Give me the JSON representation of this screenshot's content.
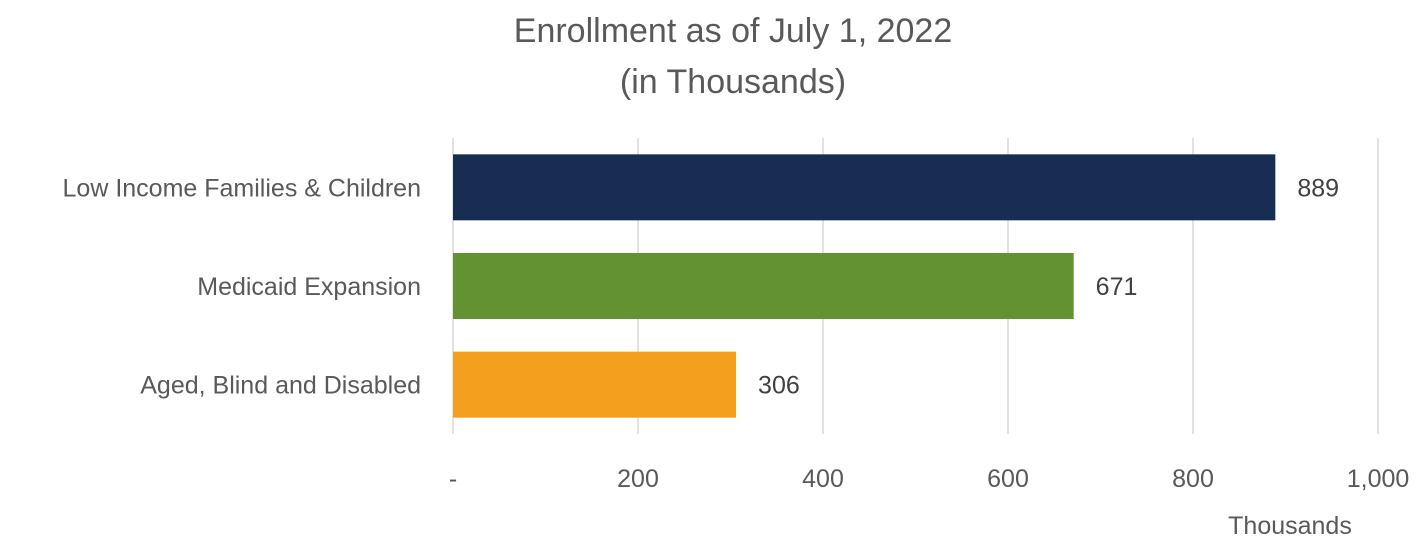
{
  "chart_data": {
    "type": "bar",
    "orientation": "horizontal",
    "title_line1": "Enrollment as of July 1, 2022",
    "title_line2": "(in Thousands)",
    "xlabel": "Thousands",
    "ylabel": "",
    "categories": [
      "Low Income Families & Children",
      "Medicaid Expansion",
      "Aged, Blind and Disabled"
    ],
    "values": [
      889,
      671,
      306
    ],
    "value_labels": [
      "889",
      "671",
      "306"
    ],
    "colors": [
      "#172e52",
      "#629330",
      "#f59f1f"
    ],
    "xlim": [
      0,
      1000
    ],
    "x_ticks": [
      0,
      200,
      400,
      600,
      800,
      1000
    ],
    "x_tick_labels": [
      "-",
      "200",
      "400",
      "600",
      "800",
      "1,000"
    ],
    "grid": "vertical",
    "legend": "none"
  }
}
